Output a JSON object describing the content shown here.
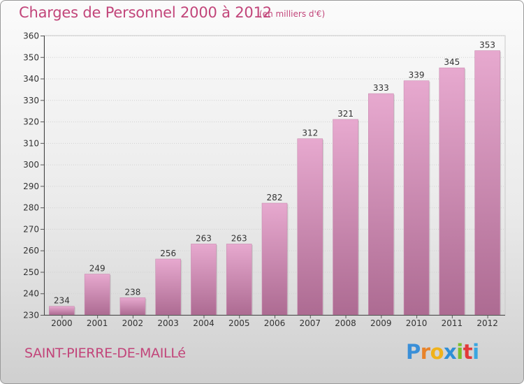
{
  "header": {
    "title": "Charges de Personnel 2000 à 2012",
    "subtitle": "(en milliers d'€)"
  },
  "footer": {
    "commune": "SAINT-PIERRE-DE-MAILLé",
    "logo": {
      "letters": [
        "P",
        "r",
        "o",
        "x",
        "i",
        "t",
        "i"
      ],
      "colors": [
        "#3a8fd8",
        "#e8832a",
        "#f0b21a",
        "#2f8fd6",
        "#7cbf2a",
        "#e23a3a",
        "#3aa6e0"
      ]
    }
  },
  "colors": {
    "accent": "#c2457a",
    "bar_top": "#e7a9cf",
    "bar_bottom": "#ad6b92"
  },
  "chart_data": {
    "type": "bar",
    "title": "Charges de Personnel 2000 à 2012",
    "subtitle": "(en milliers d'€)",
    "xlabel": "",
    "ylabel": "",
    "categories": [
      "2000",
      "2001",
      "2002",
      "2003",
      "2004",
      "2005",
      "2006",
      "2007",
      "2008",
      "2009",
      "2010",
      "2011",
      "2012"
    ],
    "values": [
      234,
      249,
      238,
      256,
      263,
      263,
      282,
      312,
      321,
      333,
      339,
      345,
      353
    ],
    "ylim": [
      230,
      360
    ],
    "yticks": [
      230,
      240,
      250,
      260,
      270,
      280,
      290,
      300,
      310,
      320,
      330,
      340,
      350,
      360
    ],
    "grid": true,
    "legend": "none"
  }
}
